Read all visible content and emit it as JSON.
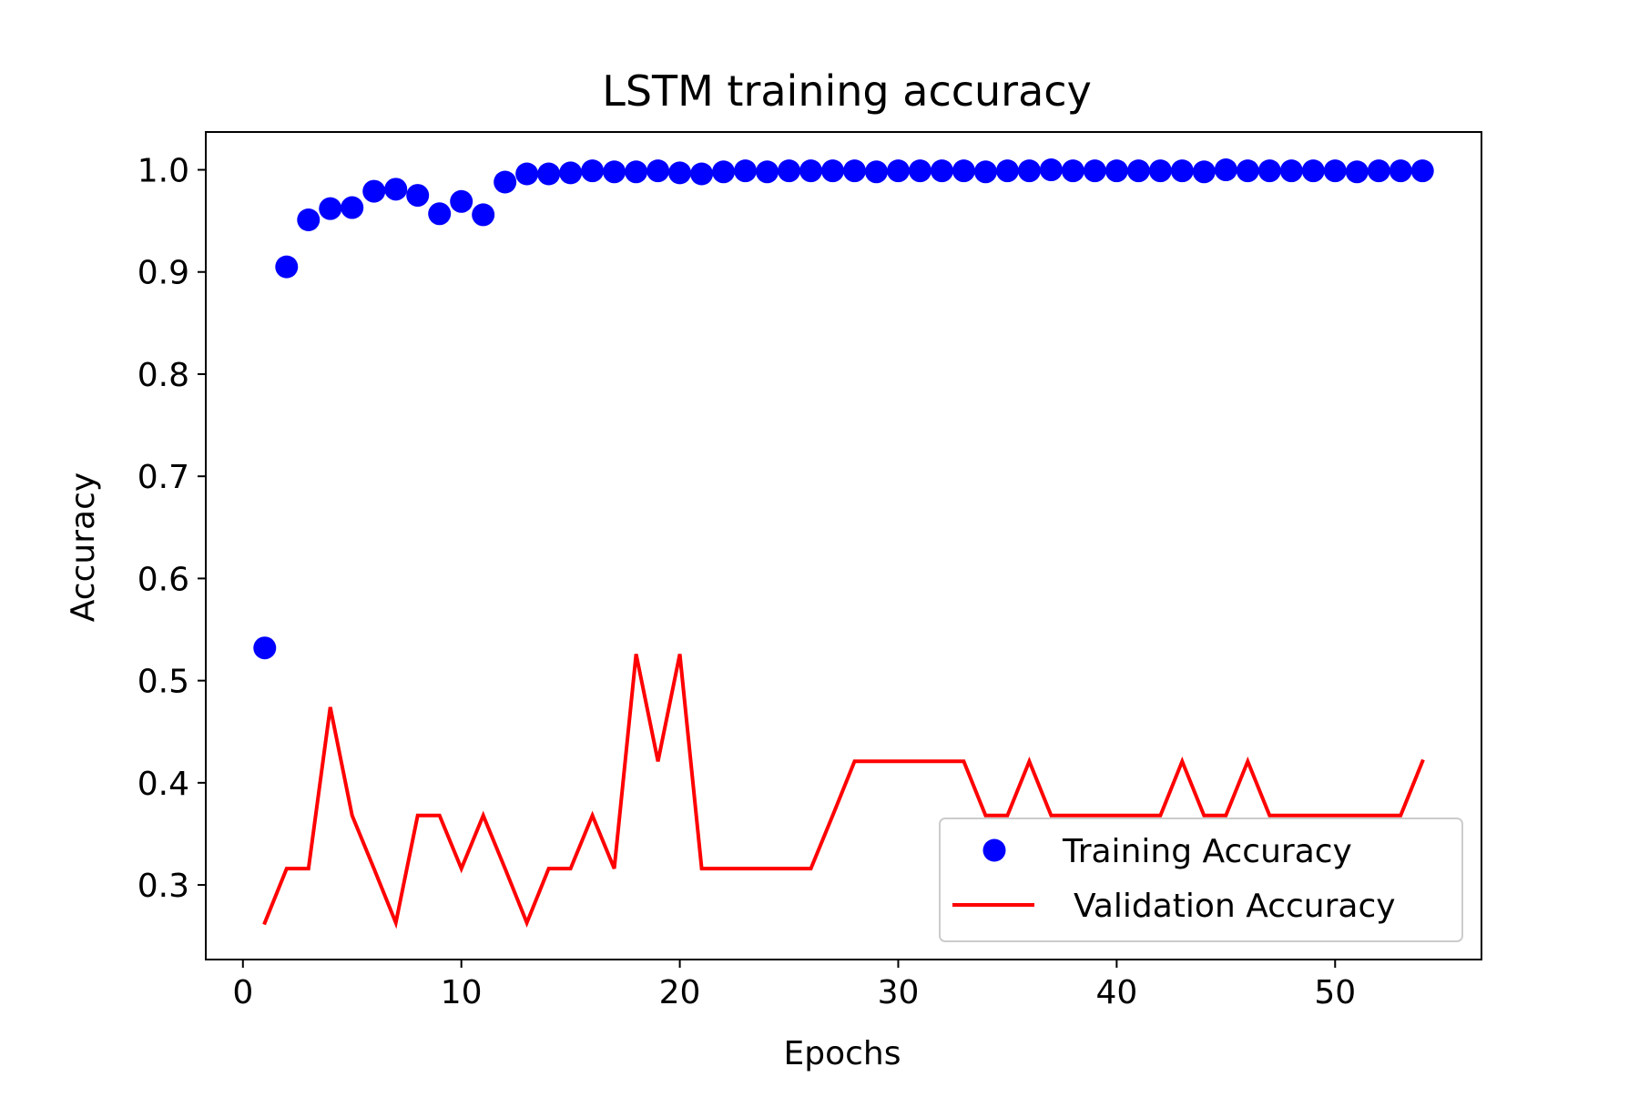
{
  "chart_data": {
    "type": "scatter+line",
    "title": "LSTM training accuracy",
    "xlabel": "Epochs",
    "ylabel": "Accuracy",
    "xlim": [
      -1.7,
      56.7
    ],
    "ylim": [
      0.227,
      1.037
    ],
    "xticks": [
      0,
      10,
      20,
      30,
      40,
      50
    ],
    "yticks": [
      0.3,
      0.4,
      0.5,
      0.6,
      0.7,
      0.8,
      0.9,
      1.0
    ],
    "xtick_labels": [
      "0",
      "10",
      "20",
      "30",
      "40",
      "50"
    ],
    "ytick_labels": [
      "0.3",
      "0.4",
      "0.5",
      "0.6",
      "0.7",
      "0.8",
      "0.9",
      "1.0"
    ],
    "grid": false,
    "legend_position": "lower-right",
    "x": [
      1,
      2,
      3,
      4,
      5,
      6,
      7,
      8,
      9,
      10,
      11,
      12,
      13,
      14,
      15,
      16,
      17,
      18,
      19,
      20,
      21,
      22,
      23,
      24,
      25,
      26,
      27,
      28,
      29,
      30,
      31,
      32,
      33,
      34,
      35,
      36,
      37,
      38,
      39,
      40,
      41,
      42,
      43,
      44,
      45,
      46,
      47,
      48,
      49,
      50,
      51,
      52,
      53,
      54
    ],
    "series": [
      {
        "name": "Training Accuracy",
        "style": "markers",
        "color": "#0000ff",
        "values": [
          0.532,
          0.905,
          0.951,
          0.962,
          0.963,
          0.979,
          0.981,
          0.975,
          0.957,
          0.969,
          0.956,
          0.988,
          0.996,
          0.996,
          0.997,
          0.999,
          0.998,
          0.998,
          0.999,
          0.997,
          0.996,
          0.998,
          0.999,
          0.998,
          0.999,
          0.999,
          0.999,
          0.999,
          0.998,
          0.999,
          0.999,
          0.999,
          0.999,
          0.998,
          0.999,
          0.999,
          1.0,
          0.999,
          0.999,
          0.999,
          0.999,
          0.999,
          0.999,
          0.998,
          1.0,
          0.999,
          0.999,
          0.999,
          0.999,
          0.999,
          0.998,
          0.999,
          0.999,
          0.999
        ]
      },
      {
        "name": "Validation Accuracy",
        "style": "line",
        "color": "#ff0000",
        "values": [
          0.263,
          0.316,
          0.316,
          0.474,
          0.368,
          0.316,
          0.263,
          0.368,
          0.368,
          0.316,
          0.368,
          0.316,
          0.263,
          0.316,
          0.316,
          0.368,
          0.316,
          0.526,
          0.421,
          0.526,
          0.316,
          0.316,
          0.316,
          0.316,
          0.316,
          0.316,
          0.368,
          0.421,
          0.421,
          0.421,
          0.421,
          0.421,
          0.421,
          0.368,
          0.368,
          0.421,
          0.368,
          0.368,
          0.368,
          0.368,
          0.368,
          0.368,
          0.421,
          0.368,
          0.368,
          0.421,
          0.368,
          0.368,
          0.368,
          0.368,
          0.368,
          0.368,
          0.368,
          0.421
        ]
      }
    ]
  }
}
